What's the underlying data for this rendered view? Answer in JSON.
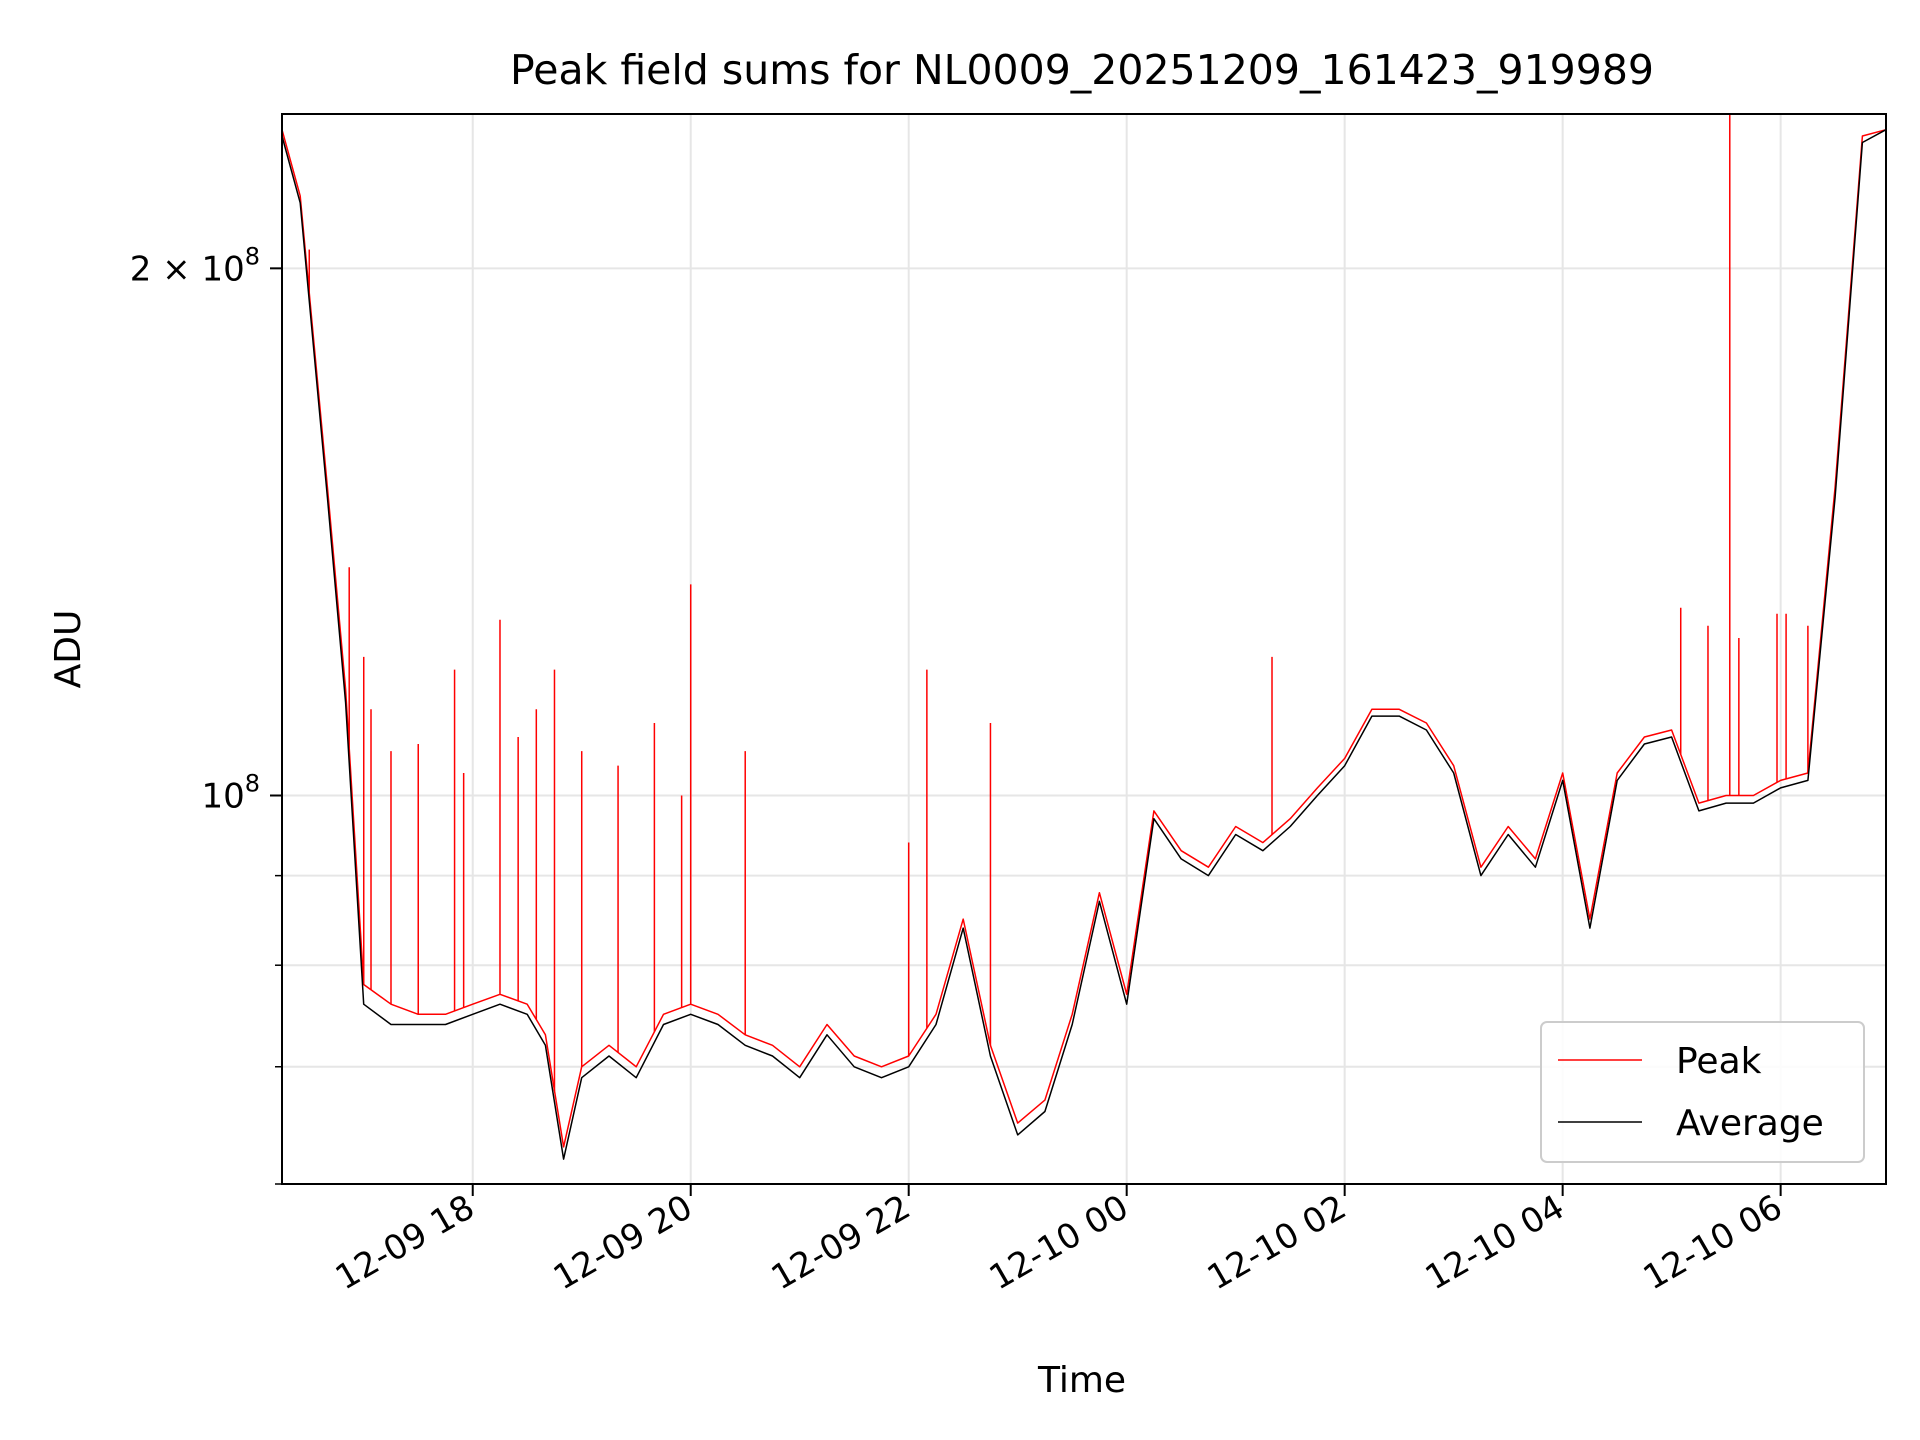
{
  "chart_data": {
    "type": "line",
    "title": "Peak field sums for NL0009_20251209_161423_919989",
    "xlabel": "Time",
    "ylabel": "ADU",
    "x_range": [
      "2025-12-09 16:15",
      "2025-12-10 06:58"
    ],
    "ylim": [
      60000000,
      245000000
    ],
    "y_scale": "log",
    "grid": true,
    "legend_position": "lower-right",
    "x_ticks": [
      {
        "value": "2025-12-09 18:00",
        "label": "12-09 18"
      },
      {
        "value": "2025-12-09 20:00",
        "label": "12-09 20"
      },
      {
        "value": "2025-12-09 22:00",
        "label": "12-09 22"
      },
      {
        "value": "2025-12-10 00:00",
        "label": "12-10 00"
      },
      {
        "value": "2025-12-10 02:00",
        "label": "12-10 02"
      },
      {
        "value": "2025-12-10 04:00",
        "label": "12-10 04"
      },
      {
        "value": "2025-12-10 06:00",
        "label": "12-10 06"
      }
    ],
    "y_major_ticks": [
      {
        "value": 100000000,
        "base": "10",
        "exp": "8",
        "coef": ""
      },
      {
        "value": 200000000,
        "base": "10",
        "exp": "8",
        "coef": "2 × "
      }
    ],
    "y_minor_ticks": [
      60000000,
      70000000,
      80000000,
      90000000
    ],
    "series": [
      {
        "name": "Peak",
        "color": "#ff0000",
        "x": [
          "2025-12-09 16:15",
          "2025-12-09 16:25",
          "2025-12-09 16:40",
          "2025-12-09 16:50",
          "2025-12-09 17:00",
          "2025-12-09 17:15",
          "2025-12-09 17:30",
          "2025-12-09 17:45",
          "2025-12-09 18:00",
          "2025-12-09 18:15",
          "2025-12-09 18:30",
          "2025-12-09 18:40",
          "2025-12-09 18:50",
          "2025-12-09 19:00",
          "2025-12-09 19:15",
          "2025-12-09 19:30",
          "2025-12-09 19:45",
          "2025-12-09 20:00",
          "2025-12-09 20:15",
          "2025-12-09 20:30",
          "2025-12-09 20:45",
          "2025-12-09 21:00",
          "2025-12-09 21:15",
          "2025-12-09 21:30",
          "2025-12-09 21:45",
          "2025-12-09 22:00",
          "2025-12-09 22:15",
          "2025-12-09 22:30",
          "2025-12-09 22:45",
          "2025-12-09 23:00",
          "2025-12-09 23:15",
          "2025-12-09 23:30",
          "2025-12-09 23:45",
          "2025-12-10 00:00",
          "2025-12-10 00:15",
          "2025-12-10 00:30",
          "2025-12-10 00:45",
          "2025-12-10 01:00",
          "2025-12-10 01:15",
          "2025-12-10 01:30",
          "2025-12-10 01:45",
          "2025-12-10 02:00",
          "2025-12-10 02:15",
          "2025-12-10 02:30",
          "2025-12-10 02:45",
          "2025-12-10 03:00",
          "2025-12-10 03:15",
          "2025-12-10 03:30",
          "2025-12-10 03:45",
          "2025-12-10 04:00",
          "2025-12-10 04:15",
          "2025-12-10 04:30",
          "2025-12-10 04:45",
          "2025-12-10 05:00",
          "2025-12-10 05:15",
          "2025-12-10 05:30",
          "2025-12-10 05:45",
          "2025-12-10 06:00",
          "2025-12-10 06:15",
          "2025-12-10 06:30",
          "2025-12-10 06:45",
          "2025-12-10 06:58"
        ],
        "y": [
          240000000,
          220000000,
          150000000,
          115000000,
          78000000,
          76000000,
          75000000,
          75000000,
          76000000,
          77000000,
          76000000,
          73000000,
          63000000,
          70000000,
          72000000,
          70000000,
          75000000,
          76000000,
          75000000,
          73000000,
          72000000,
          70000000,
          74000000,
          71000000,
          70000000,
          71000000,
          75000000,
          85000000,
          72000000,
          65000000,
          67000000,
          75000000,
          88000000,
          77000000,
          98000000,
          93000000,
          91000000,
          96000000,
          94000000,
          97000000,
          101000000,
          105000000,
          112000000,
          112000000,
          110000000,
          104000000,
          91000000,
          96000000,
          92000000,
          103000000,
          85000000,
          103000000,
          108000000,
          109000000,
          99000000,
          100000000,
          100000000,
          102000000,
          103000000,
          150000000,
          238000000,
          240000000
        ]
      },
      {
        "name": "Average",
        "color": "#000000",
        "x": [
          "2025-12-09 16:15",
          "2025-12-09 16:25",
          "2025-12-09 16:40",
          "2025-12-09 16:50",
          "2025-12-09 17:00",
          "2025-12-09 17:15",
          "2025-12-09 17:30",
          "2025-12-09 17:45",
          "2025-12-09 18:00",
          "2025-12-09 18:15",
          "2025-12-09 18:30",
          "2025-12-09 18:40",
          "2025-12-09 18:50",
          "2025-12-09 19:00",
          "2025-12-09 19:15",
          "2025-12-09 19:30",
          "2025-12-09 19:45",
          "2025-12-09 20:00",
          "2025-12-09 20:15",
          "2025-12-09 20:30",
          "2025-12-09 20:45",
          "2025-12-09 21:00",
          "2025-12-09 21:15",
          "2025-12-09 21:30",
          "2025-12-09 21:45",
          "2025-12-09 22:00",
          "2025-12-09 22:15",
          "2025-12-09 22:30",
          "2025-12-09 22:45",
          "2025-12-09 23:00",
          "2025-12-09 23:15",
          "2025-12-09 23:30",
          "2025-12-09 23:45",
          "2025-12-10 00:00",
          "2025-12-10 00:15",
          "2025-12-10 00:30",
          "2025-12-10 00:45",
          "2025-12-10 01:00",
          "2025-12-10 01:15",
          "2025-12-10 01:30",
          "2025-12-10 01:45",
          "2025-12-10 02:00",
          "2025-12-10 02:15",
          "2025-12-10 02:30",
          "2025-12-10 02:45",
          "2025-12-10 03:00",
          "2025-12-10 03:15",
          "2025-12-10 03:30",
          "2025-12-10 03:45",
          "2025-12-10 04:00",
          "2025-12-10 04:15",
          "2025-12-10 04:30",
          "2025-12-10 04:45",
          "2025-12-10 05:00",
          "2025-12-10 05:15",
          "2025-12-10 05:30",
          "2025-12-10 05:45",
          "2025-12-10 06:00",
          "2025-12-10 06:15",
          "2025-12-10 06:30",
          "2025-12-10 06:45",
          "2025-12-10 06:58"
        ],
        "y": [
          238000000,
          218000000,
          148000000,
          113000000,
          76000000,
          74000000,
          74000000,
          74000000,
          75000000,
          76000000,
          75000000,
          72000000,
          62000000,
          69000000,
          71000000,
          69000000,
          74000000,
          75000000,
          74000000,
          72000000,
          71000000,
          69000000,
          73000000,
          70000000,
          69000000,
          70000000,
          74000000,
          84000000,
          71000000,
          64000000,
          66000000,
          74000000,
          87000000,
          76000000,
          97000000,
          92000000,
          90000000,
          95000000,
          93000000,
          96000000,
          100000000,
          104000000,
          111000000,
          111000000,
          109000000,
          103000000,
          90000000,
          95000000,
          91000000,
          102000000,
          84000000,
          102000000,
          107000000,
          108000000,
          98000000,
          99000000,
          99000000,
          101000000,
          102000000,
          148000000,
          236000000,
          240000000
        ]
      }
    ],
    "peak_spikes": [
      {
        "x": "2025-12-09 16:30",
        "y": 205000000
      },
      {
        "x": "2025-12-09 16:52",
        "y": 135000000
      },
      {
        "x": "2025-12-09 17:00",
        "y": 120000000
      },
      {
        "x": "2025-12-09 17:04",
        "y": 112000000
      },
      {
        "x": "2025-12-09 17:15",
        "y": 106000000
      },
      {
        "x": "2025-12-09 17:30",
        "y": 107000000
      },
      {
        "x": "2025-12-09 17:50",
        "y": 118000000
      },
      {
        "x": "2025-12-09 17:55",
        "y": 103000000
      },
      {
        "x": "2025-12-09 18:15",
        "y": 126000000
      },
      {
        "x": "2025-12-09 18:25",
        "y": 108000000
      },
      {
        "x": "2025-12-09 18:35",
        "y": 112000000
      },
      {
        "x": "2025-12-09 18:45",
        "y": 118000000
      },
      {
        "x": "2025-12-09 19:00",
        "y": 106000000
      },
      {
        "x": "2025-12-09 19:20",
        "y": 104000000
      },
      {
        "x": "2025-12-09 19:40",
        "y": 110000000
      },
      {
        "x": "2025-12-09 19:55",
        "y": 100000000
      },
      {
        "x": "2025-12-09 20:00",
        "y": 132000000
      },
      {
        "x": "2025-12-09 20:30",
        "y": 106000000
      },
      {
        "x": "2025-12-09 22:00",
        "y": 94000000
      },
      {
        "x": "2025-12-09 22:10",
        "y": 118000000
      },
      {
        "x": "2025-12-09 22:45",
        "y": 110000000
      },
      {
        "x": "2025-12-10 01:20",
        "y": 120000000
      },
      {
        "x": "2025-12-10 05:05",
        "y": 128000000
      },
      {
        "x": "2025-12-10 05:20",
        "y": 125000000
      },
      {
        "x": "2025-12-10 05:32",
        "y": 245000000
      },
      {
        "x": "2025-12-10 05:37",
        "y": 123000000
      },
      {
        "x": "2025-12-10 05:58",
        "y": 127000000
      },
      {
        "x": "2025-12-10 06:03",
        "y": 127000000
      },
      {
        "x": "2025-12-10 06:15",
        "y": 125000000
      }
    ],
    "legend": [
      {
        "label": "Peak",
        "color": "#ff0000"
      },
      {
        "label": "Average",
        "color": "#000000"
      }
    ]
  }
}
